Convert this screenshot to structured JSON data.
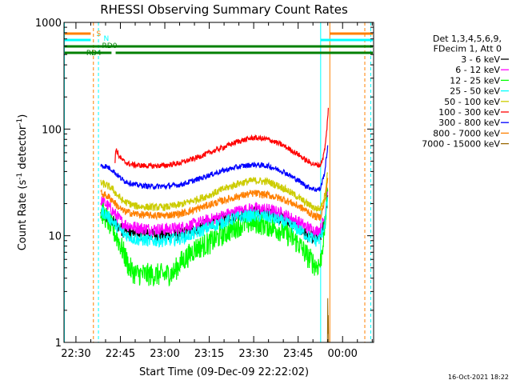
{
  "chart_data": {
    "type": "line",
    "title": "RHESSI Observing Summary Count Rates",
    "xlabel": "Start Time (09-Dec-09 22:22:02)",
    "ylabel_main": "Count Rate (s",
    "ylabel_sup1": "-1",
    "ylabel_mid": " detector",
    "ylabel_sup2": "-1",
    "ylabel_end": ")",
    "yscale": "log",
    "ylim": [
      1,
      1000
    ],
    "xlim_minutes": [
      -4.03,
      100.47
    ],
    "x_ticks": [
      {
        "label": "22:30",
        "min": 0
      },
      {
        "label": "22:45",
        "min": 15
      },
      {
        "label": "23:00",
        "min": 30
      },
      {
        "label": "23:15",
        "min": 45
      },
      {
        "label": "23:30",
        "min": 60
      },
      {
        "label": "23:45",
        "min": 75
      },
      {
        "label": "00:00",
        "min": 90
      }
    ],
    "y_ticks": [
      {
        "label": "1",
        "value": 1
      },
      {
        "label": "10",
        "value": 10
      },
      {
        "label": "100",
        "value": 100
      },
      {
        "label": "1000",
        "value": 1000
      }
    ],
    "legend": {
      "position": "right",
      "header": [
        "Det 1,3,4,5,6,9,",
        "FDecim 1, Att 0"
      ],
      "entries": [
        {
          "label": "3 - 6 keV",
          "color": "#000000"
        },
        {
          "label": "6 - 12 keV",
          "color": "#ff00ff"
        },
        {
          "label": "12 - 25 keV",
          "color": "#00ff00"
        },
        {
          "label": "25 - 50 keV",
          "color": "#00ffff"
        },
        {
          "label": "50 - 100 keV",
          "color": "#cccc00"
        },
        {
          "label": "100 - 300 keV",
          "color": "#ff0000"
        },
        {
          "label": "300 - 800 keV",
          "color": "#0000ff"
        },
        {
          "label": "800 - 7000 keV",
          "color": "#ff8000"
        },
        {
          "label": "7000 - 15000 keV",
          "color": "#996600"
        }
      ]
    },
    "flag_bars": [
      {
        "label": "S",
        "color": "#ff8000",
        "segments": [
          [
            -3.8,
            5.0
          ],
          [
            85.7,
            100.2
          ]
        ]
      },
      {
        "label": "N",
        "color": "#00ffff",
        "segments": [
          [
            -3.8,
            5.0
          ],
          [
            82.6,
            100.2
          ]
        ]
      },
      {
        "label": "RD0",
        "color": "#008000",
        "segments": [
          [
            -3.8,
            100.2
          ]
        ]
      },
      {
        "label": "RD4",
        "color": "#008000",
        "segments": [
          [
            -3.8,
            12.0
          ],
          [
            13.4,
            100.2
          ]
        ]
      }
    ],
    "vertical_markers": [
      {
        "min": -3.9,
        "color": "#00ffff",
        "style": "solid"
      },
      {
        "min": 5.9,
        "color": "#ff8000",
        "style": "dashed"
      },
      {
        "min": 7.6,
        "color": "#00ffff",
        "style": "dashed"
      },
      {
        "min": 82.6,
        "color": "#00ffff",
        "style": "solid"
      },
      {
        "min": 85.7,
        "color": "#ff8000",
        "style": "solid"
      },
      {
        "min": 97.5,
        "color": "#ff8000",
        "style": "dashed"
      },
      {
        "min": 99.5,
        "color": "#00ffff",
        "style": "dashed"
      }
    ],
    "series": [
      {
        "name": "3 - 6 keV",
        "color": "#000000",
        "noise": 0.12,
        "points": [
          [
            8.4,
            16
          ],
          [
            10,
            15
          ],
          [
            12,
            14
          ],
          [
            14,
            12.5
          ],
          [
            16,
            11
          ],
          [
            20,
            10.5
          ],
          [
            25,
            10.2
          ],
          [
            30,
            10
          ],
          [
            35,
            10.3
          ],
          [
            40,
            11.5
          ],
          [
            45,
            13
          ],
          [
            50,
            14.5
          ],
          [
            55,
            15.8
          ],
          [
            60,
            16.5
          ],
          [
            65,
            16
          ],
          [
            70,
            14.5
          ],
          [
            75,
            12
          ],
          [
            78,
            10
          ],
          [
            81,
            9.5
          ],
          [
            82.5,
            9.7
          ],
          [
            84,
            13
          ],
          [
            85,
            25
          ]
        ]
      },
      {
        "name": "6 - 12 keV",
        "color": "#ff00ff",
        "noise": 0.12,
        "points": [
          [
            8.4,
            21
          ],
          [
            10,
            20
          ],
          [
            12,
            17.5
          ],
          [
            14,
            15
          ],
          [
            16,
            13
          ],
          [
            20,
            12
          ],
          [
            25,
            11.5
          ],
          [
            30,
            11.5
          ],
          [
            35,
            11.8
          ],
          [
            40,
            12.8
          ],
          [
            45,
            14
          ],
          [
            50,
            15.5
          ],
          [
            55,
            17
          ],
          [
            60,
            18
          ],
          [
            65,
            17.5
          ],
          [
            70,
            16
          ],
          [
            75,
            13.5
          ],
          [
            78,
            12
          ],
          [
            81,
            11
          ],
          [
            82.5,
            11.5
          ],
          [
            84,
            15
          ],
          [
            85,
            28
          ]
        ]
      },
      {
        "name": "12 - 25 keV",
        "color": "#00ff00",
        "noise": 0.22,
        "points": [
          [
            8.4,
            17
          ],
          [
            10,
            15
          ],
          [
            12,
            12
          ],
          [
            14,
            9.5
          ],
          [
            16,
            7
          ],
          [
            18,
            5
          ],
          [
            20,
            4.4
          ],
          [
            25,
            4.3
          ],
          [
            30,
            4.3
          ],
          [
            33,
            4.5
          ],
          [
            35,
            5.5
          ],
          [
            38,
            6.5
          ],
          [
            40,
            7.5
          ],
          [
            45,
            8.5
          ],
          [
            50,
            10.5
          ],
          [
            55,
            12.5
          ],
          [
            60,
            13.5
          ],
          [
            65,
            12.5
          ],
          [
            70,
            11
          ],
          [
            75,
            8.5
          ],
          [
            78,
            6.5
          ],
          [
            81,
            5.2
          ],
          [
            82.5,
            5.5
          ],
          [
            84,
            12
          ],
          [
            85,
            30
          ]
        ]
      },
      {
        "name": "25 - 50 keV",
        "color": "#00ffff",
        "noise": 0.12,
        "points": [
          [
            8.4,
            17
          ],
          [
            10,
            16
          ],
          [
            12,
            14
          ],
          [
            14,
            12
          ],
          [
            16,
            10.5
          ],
          [
            20,
            9.3
          ],
          [
            25,
            9
          ],
          [
            30,
            9
          ],
          [
            35,
            9.4
          ],
          [
            40,
            10.5
          ],
          [
            45,
            12
          ],
          [
            50,
            13.5
          ],
          [
            55,
            15
          ],
          [
            60,
            15.5
          ],
          [
            65,
            15
          ],
          [
            70,
            13.5
          ],
          [
            75,
            11.5
          ],
          [
            78,
            10
          ],
          [
            81,
            9
          ],
          [
            82.5,
            9.5
          ],
          [
            84,
            13
          ],
          [
            85,
            24
          ]
        ]
      },
      {
        "name": "50 - 100 keV",
        "color": "#cccc00",
        "noise": 0.07,
        "points": [
          [
            8.4,
            31
          ],
          [
            10,
            30
          ],
          [
            12,
            28
          ],
          [
            14,
            24
          ],
          [
            16,
            21
          ],
          [
            20,
            19
          ],
          [
            25,
            18.5
          ],
          [
            30,
            18.5
          ],
          [
            35,
            19.5
          ],
          [
            40,
            21.5
          ],
          [
            45,
            24
          ],
          [
            50,
            27.5
          ],
          [
            55,
            31
          ],
          [
            60,
            33
          ],
          [
            65,
            32
          ],
          [
            70,
            28
          ],
          [
            75,
            23
          ],
          [
            78,
            20
          ],
          [
            81,
            18
          ],
          [
            82.5,
            18
          ],
          [
            84,
            24
          ],
          [
            85,
            40
          ]
        ]
      },
      {
        "name": "100 - 300 keV",
        "color": "#ff0000",
        "noise": 0.05,
        "points": [
          [
            13.2,
            48
          ],
          [
            13.4,
            66
          ],
          [
            14.5,
            56
          ],
          [
            16,
            50
          ],
          [
            18,
            47
          ],
          [
            20,
            46
          ],
          [
            25,
            45
          ],
          [
            30,
            45.5
          ],
          [
            35,
            48
          ],
          [
            40,
            53
          ],
          [
            45,
            60
          ],
          [
            50,
            68
          ],
          [
            55,
            77
          ],
          [
            60,
            83
          ],
          [
            65,
            80
          ],
          [
            70,
            70
          ],
          [
            75,
            58
          ],
          [
            78,
            50
          ],
          [
            81,
            46
          ],
          [
            82.5,
            46
          ],
          [
            83.5,
            55
          ],
          [
            84.3,
            75
          ],
          [
            84.8,
            110
          ],
          [
            85.2,
            158
          ]
        ]
      },
      {
        "name": "300 - 800 keV",
        "color": "#0000ff",
        "noise": 0.05,
        "points": [
          [
            8.4,
            45
          ],
          [
            10,
            45
          ],
          [
            12,
            42
          ],
          [
            14,
            37
          ],
          [
            16,
            33
          ],
          [
            20,
            30
          ],
          [
            25,
            29
          ],
          [
            30,
            29
          ],
          [
            35,
            30
          ],
          [
            40,
            33
          ],
          [
            45,
            37
          ],
          [
            50,
            41
          ],
          [
            55,
            44.5
          ],
          [
            60,
            46.5
          ],
          [
            65,
            45
          ],
          [
            70,
            40
          ],
          [
            75,
            33
          ],
          [
            78,
            29
          ],
          [
            81,
            27
          ],
          [
            82.5,
            27.5
          ],
          [
            84,
            40
          ],
          [
            85,
            70
          ]
        ]
      },
      {
        "name": "800 - 7000 keV",
        "color": "#ff8000",
        "noise": 0.07,
        "points": [
          [
            8.4,
            25
          ],
          [
            10,
            24
          ],
          [
            12,
            22
          ],
          [
            14,
            19
          ],
          [
            16,
            17
          ],
          [
            20,
            16
          ],
          [
            25,
            15.5
          ],
          [
            30,
            15.5
          ],
          [
            35,
            16
          ],
          [
            40,
            17.5
          ],
          [
            45,
            19.5
          ],
          [
            50,
            21.5
          ],
          [
            55,
            23.5
          ],
          [
            60,
            25
          ],
          [
            65,
            24
          ],
          [
            70,
            22
          ],
          [
            75,
            19
          ],
          [
            78,
            17
          ],
          [
            81,
            15
          ],
          [
            82.5,
            15
          ],
          [
            84,
            21
          ],
          [
            85,
            35
          ]
        ]
      },
      {
        "name": "7000 - 15000 keV",
        "color": "#996600",
        "noise": 0.0,
        "points": [
          [
            84.9,
            1.0
          ],
          [
            85.0,
            2.6
          ],
          [
            85.1,
            1.2
          ],
          [
            85.2,
            1.8
          ],
          [
            85.3,
            1.0
          ]
        ]
      }
    ],
    "footer_timestamp": "16-Oct-2021 18:22"
  }
}
